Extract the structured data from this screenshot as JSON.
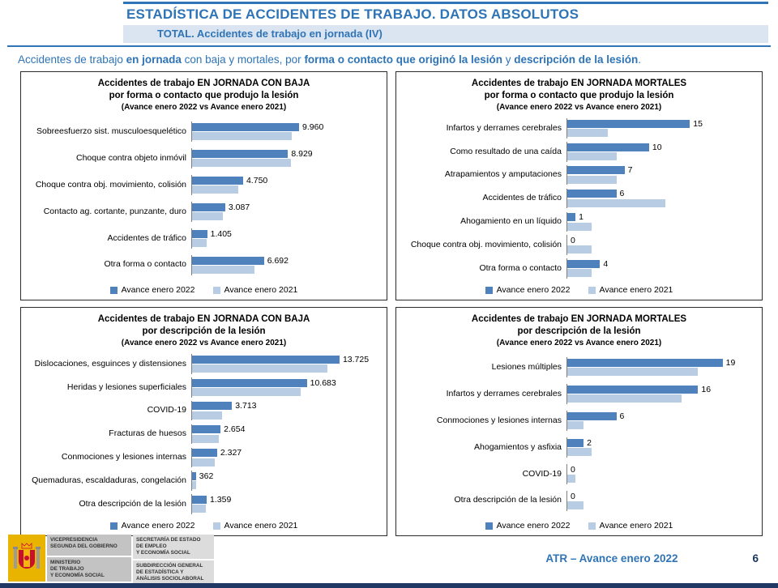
{
  "header": {
    "title": "ESTADÍSTICA DE ACCIDENTES DE TRABAJO. DATOS ABSOLUTOS",
    "subtitle": "TOTAL. Accidentes de trabajo en jornada (IV)",
    "description": {
      "seg1": "Accidentes de trabajo ",
      "seg2": "en jornada",
      "seg3": " con baja y mortales, por ",
      "seg4": "forma o contacto que originó la lesión",
      "seg5": " y ",
      "seg6": "descripción de la lesión",
      "seg7": "."
    }
  },
  "colors": {
    "accent_blue": "#2E74B6",
    "series_2022": "#4F81BD",
    "series_2021": "#B8CCE4",
    "subtitle_band": "#DBE5F1",
    "footer_strip": "#1F3864",
    "logo_yellow": "#E9B400"
  },
  "chart_data": [
    {
      "type": "bar",
      "orientation": "horizontal",
      "title_line1": "Accidentes de trabajo EN JORNADA CON BAJA",
      "title_line2": "por forma o contacto que produjo la lesión",
      "title_line3": "(Avance enero 2022 vs Avance enero 2021)",
      "categories": [
        "Sobreesfuerzo sist. musculoesquelético",
        "Choque contra objeto inmóvil",
        "Choque contra obj. movimiento, colisión",
        "Contacto ag. cortante, punzante, duro",
        "Accidentes de tráfico",
        "Otra forma o contacto"
      ],
      "series": [
        {
          "name": "Avance enero 2022",
          "values": [
            9960,
            8929,
            4750,
            3087,
            1405,
            6692
          ],
          "labels": [
            "9.960",
            "8.929",
            "4.750",
            "3.087",
            "1.405",
            "6.692"
          ]
        },
        {
          "name": "Avance enero 2021",
          "values": [
            9300,
            9200,
            4300,
            2900,
            1350,
            5800
          ]
        }
      ],
      "xlim": [
        0,
        17500
      ],
      "legend_position": "bottom",
      "grid": false
    },
    {
      "type": "bar",
      "orientation": "horizontal",
      "title_line1": "Accidentes de trabajo EN JORNADA MORTALES",
      "title_line2": "por forma o contacto que produjo la lesión",
      "title_line3": "(Avance enero 2022 vs Avance enero 2021)",
      "categories": [
        "Infartos y derrames cerebrales",
        "Como resultado de una caída",
        "Atrapamientos y amputaciones",
        "Accidentes de tráfico",
        "Ahogamiento en un líquido",
        "Choque contra obj. movimiento, colisión",
        "Otra forma o contacto"
      ],
      "series": [
        {
          "name": "Avance enero 2022",
          "values": [
            15,
            10,
            7,
            6,
            1,
            0,
            4
          ],
          "labels": [
            "15",
            "10",
            "7",
            "6",
            "1",
            "0",
            "4"
          ]
        },
        {
          "name": "Avance enero 2021",
          "values": [
            5,
            6,
            6,
            12,
            3,
            3,
            3
          ]
        }
      ],
      "xlim": [
        0,
        23
      ],
      "legend_position": "bottom",
      "grid": false
    },
    {
      "type": "bar",
      "orientation": "horizontal",
      "title_line1": "Accidentes de trabajo EN JORNADA CON BAJA",
      "title_line2": "por descripción de la lesión",
      "title_line3": "(Avance enero 2022 vs Avance enero 2021)",
      "categories": [
        "Dislocaciones, esguinces y distensiones",
        "Heridas y lesiones superficiales",
        "COVID-19",
        "Fracturas de huesos",
        "Conmociones y lesiones internas",
        "Quemaduras, escaldaduras, congelación",
        "Otra descripción de la lesión"
      ],
      "series": [
        {
          "name": "Avance enero 2022",
          "values": [
            13725,
            10683,
            3713,
            2654,
            2327,
            362,
            1359
          ],
          "labels": [
            "13.725",
            "10.683",
            "3.713",
            "2.654",
            "2.327",
            "362",
            "1.359"
          ]
        },
        {
          "name": "Avance enero 2021",
          "values": [
            12600,
            10100,
            2800,
            2500,
            2100,
            400,
            1300
          ]
        }
      ],
      "xlim": [
        0,
        17500
      ],
      "legend_position": "bottom",
      "grid": false
    },
    {
      "type": "bar",
      "orientation": "horizontal",
      "title_line1": "Accidentes de trabajo EN JORNADA MORTALES",
      "title_line2": "por descripción de la lesión",
      "title_line3": "(Avance enero 2022 vs Avance enero 2021)",
      "categories": [
        "Lesiones múltiples",
        "Infartos y derrames cerebrales",
        "Conmociones y lesiones internas",
        "Ahogamientos y asfixia",
        "COVID-19",
        "Otra descripción de la lesión"
      ],
      "series": [
        {
          "name": "Avance enero 2022",
          "values": [
            19,
            16,
            6,
            2,
            0,
            0
          ],
          "labels": [
            "19",
            "16",
            "6",
            "2",
            "0",
            "0"
          ]
        },
        {
          "name": "Avance enero 2021",
          "values": [
            16,
            14,
            2,
            3,
            1,
            2
          ]
        }
      ],
      "xlim": [
        0,
        23
      ],
      "legend_position": "bottom",
      "grid": false
    }
  ],
  "footer": {
    "block1_top": "VICEPRESIDENCIA\nSEGUNDA DEL GOBIERNO",
    "block1_bottom": "MINISTERIO\nDE TRABAJO\nY ECONOMÍA SOCIAL",
    "block2_top": "SECRETARÍA DE ESTADO\nDE EMPLEO\nY ECONOMÍA SOCIAL",
    "block2_bottom": "SUBDIRECCIÓN GENERAL\nDE ESTADÍSTICA Y\nANÁLISIS SOCIOLABORAL",
    "report_ref": "ATR – Avance enero 2022",
    "page_number": "6"
  }
}
